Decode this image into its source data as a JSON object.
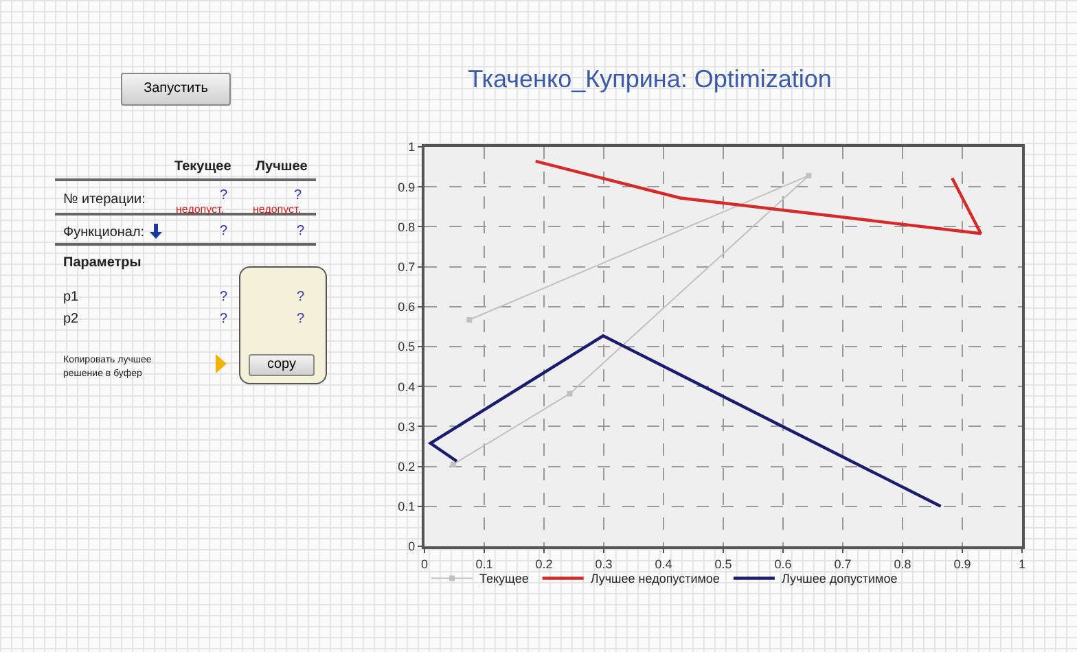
{
  "chart_data": [
    {
      "type": "other",
      "annotations": [
        "Запустить",
        "Текущее",
        "Лучшее",
        "№ итерации:",
        "?",
        "?",
        "недопуст.",
        "недопуст.",
        "Функционал:",
        "?",
        "?",
        "Параметры",
        "p1",
        "?",
        "?",
        "p2",
        "?",
        "?",
        "Копировать лучшее решение в буфер",
        "copy"
      ]
    },
    {
      "type": "line",
      "title": "Ткаченко_Куприна: Optimization",
      "xlim": [
        0,
        1
      ],
      "ylim": [
        0,
        1
      ],
      "xticks": [
        0,
        0.1,
        0.2,
        0.3,
        0.4,
        0.5,
        0.6,
        0.7,
        0.8,
        0.9,
        1
      ],
      "yticks": [
        0,
        0.1,
        0.2,
        0.3,
        0.4,
        0.5,
        0.6,
        0.7,
        0.8,
        0.9,
        1
      ],
      "grid": true,
      "legend": "bottom",
      "series": [
        {
          "name": "Текущее",
          "color": "#c0c0c0",
          "marker": "square",
          "x": [
            0.075,
            0.643,
            0.243,
            0.048
          ],
          "values": [
            0.567,
            0.928,
            0.382,
            0.205
          ]
        },
        {
          "name": "Лучшее недопустимое",
          "color": "#d42a2a",
          "marker": "none",
          "x": [
            0.186,
            0.428,
            0.931,
            0.883
          ],
          "values": [
            0.964,
            0.872,
            0.783,
            0.922
          ]
        },
        {
          "name": "Лучшее допустимое",
          "color": "#1c1c6e",
          "marker": "none",
          "x": [
            0.054,
            0.01,
            0.299,
            0.864
          ],
          "values": [
            0.213,
            0.258,
            0.527,
            0.1
          ]
        }
      ]
    }
  ]
}
